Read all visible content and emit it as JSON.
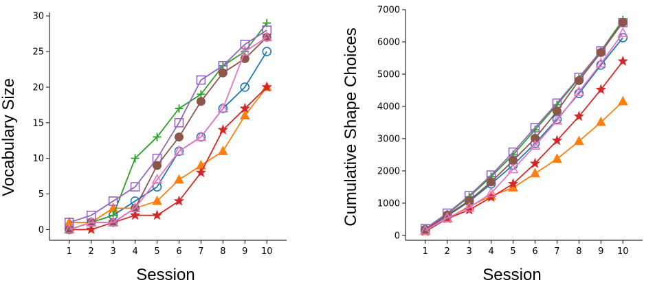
{
  "chart_data": [
    {
      "type": "line",
      "xlabel": "Session",
      "ylabel": "Vocabulary Size",
      "x": [
        1,
        2,
        3,
        4,
        5,
        6,
        7,
        8,
        9,
        10
      ],
      "xlim": [
        0.1,
        10.9
      ],
      "ylim": [
        -1.5,
        30.5
      ],
      "yticks": [
        0,
        5,
        10,
        15,
        20,
        25,
        30
      ],
      "series": [
        {
          "name": "series-blue-circle",
          "color": "#1f77b4",
          "marker": "circle",
          "values": [
            0,
            1,
            2,
            4,
            6,
            11,
            13,
            17,
            20,
            25
          ]
        },
        {
          "name": "series-orange-triangle",
          "color": "#ff7f0e",
          "marker": "triangle",
          "values": [
            1,
            1,
            3,
            3,
            4,
            7,
            9,
            11,
            16,
            20
          ]
        },
        {
          "name": "series-green-plus",
          "color": "#2ca02c",
          "marker": "plus",
          "values": [
            0,
            1,
            2,
            10,
            13,
            17,
            19,
            23,
            25,
            29
          ]
        },
        {
          "name": "series-red-star",
          "color": "#d62728",
          "marker": "star",
          "values": [
            0,
            0,
            1,
            2,
            2,
            4,
            8,
            14,
            17,
            20
          ]
        },
        {
          "name": "series-purple-square",
          "color": "#9467bd",
          "marker": "square",
          "values": [
            1,
            2,
            4,
            6,
            10,
            15,
            21,
            23,
            26,
            28
          ]
        },
        {
          "name": "series-brown-dot",
          "color": "#8c564b",
          "marker": "dot",
          "values": [
            0,
            1,
            1,
            3,
            9,
            13,
            18,
            22,
            24,
            27
          ]
        },
        {
          "name": "series-pink-triangle",
          "color": "#e377c2",
          "marker": "triangle-open",
          "values": [
            0,
            1,
            1,
            3,
            7,
            11,
            13,
            17,
            25,
            27
          ]
        }
      ]
    },
    {
      "type": "line",
      "xlabel": "Session",
      "ylabel": "Cumulative Shape Choices",
      "x": [
        1,
        2,
        3,
        4,
        5,
        6,
        7,
        8,
        9,
        10
      ],
      "xlim": [
        0.1,
        10.9
      ],
      "ylim": [
        -150,
        7000
      ],
      "yticks": [
        0,
        1000,
        2000,
        3000,
        4000,
        5000,
        6000,
        7000
      ],
      "series": [
        {
          "name": "series-blue-circle",
          "color": "#1f77b4",
          "marker": "circle",
          "values": [
            180,
            600,
            1050,
            1600,
            2180,
            2850,
            3600,
            4400,
            5280,
            6130
          ]
        },
        {
          "name": "series-orange-triangle",
          "color": "#ff7f0e",
          "marker": "triangle",
          "values": [
            130,
            520,
            900,
            1220,
            1480,
            1920,
            2370,
            2920,
            3510,
            4150
          ]
        },
        {
          "name": "series-green-plus",
          "color": "#2ca02c",
          "marker": "plus",
          "values": [
            200,
            660,
            1200,
            1820,
            2500,
            3270,
            4050,
            4870,
            5720,
            6680
          ]
        },
        {
          "name": "series-red-star",
          "color": "#d62728",
          "marker": "star",
          "values": [
            120,
            520,
            790,
            1180,
            1600,
            2230,
            2940,
            3690,
            4520,
            5400
          ]
        },
        {
          "name": "series-purple-square",
          "color": "#9467bd",
          "marker": "square",
          "values": [
            210,
            690,
            1230,
            1870,
            2580,
            3340,
            4100,
            4900,
            5720,
            6600
          ]
        },
        {
          "name": "series-brown-dot",
          "color": "#8c564b",
          "marker": "dot",
          "values": [
            170,
            630,
            1080,
            1660,
            2320,
            3010,
            3850,
            4800,
            5670,
            6610
          ]
        },
        {
          "name": "series-pink-triangle",
          "color": "#e377c2",
          "marker": "triangle-open",
          "values": [
            150,
            540,
            860,
            1310,
            2050,
            2780,
            3560,
            4450,
            5330,
            6270
          ]
        }
      ]
    }
  ]
}
